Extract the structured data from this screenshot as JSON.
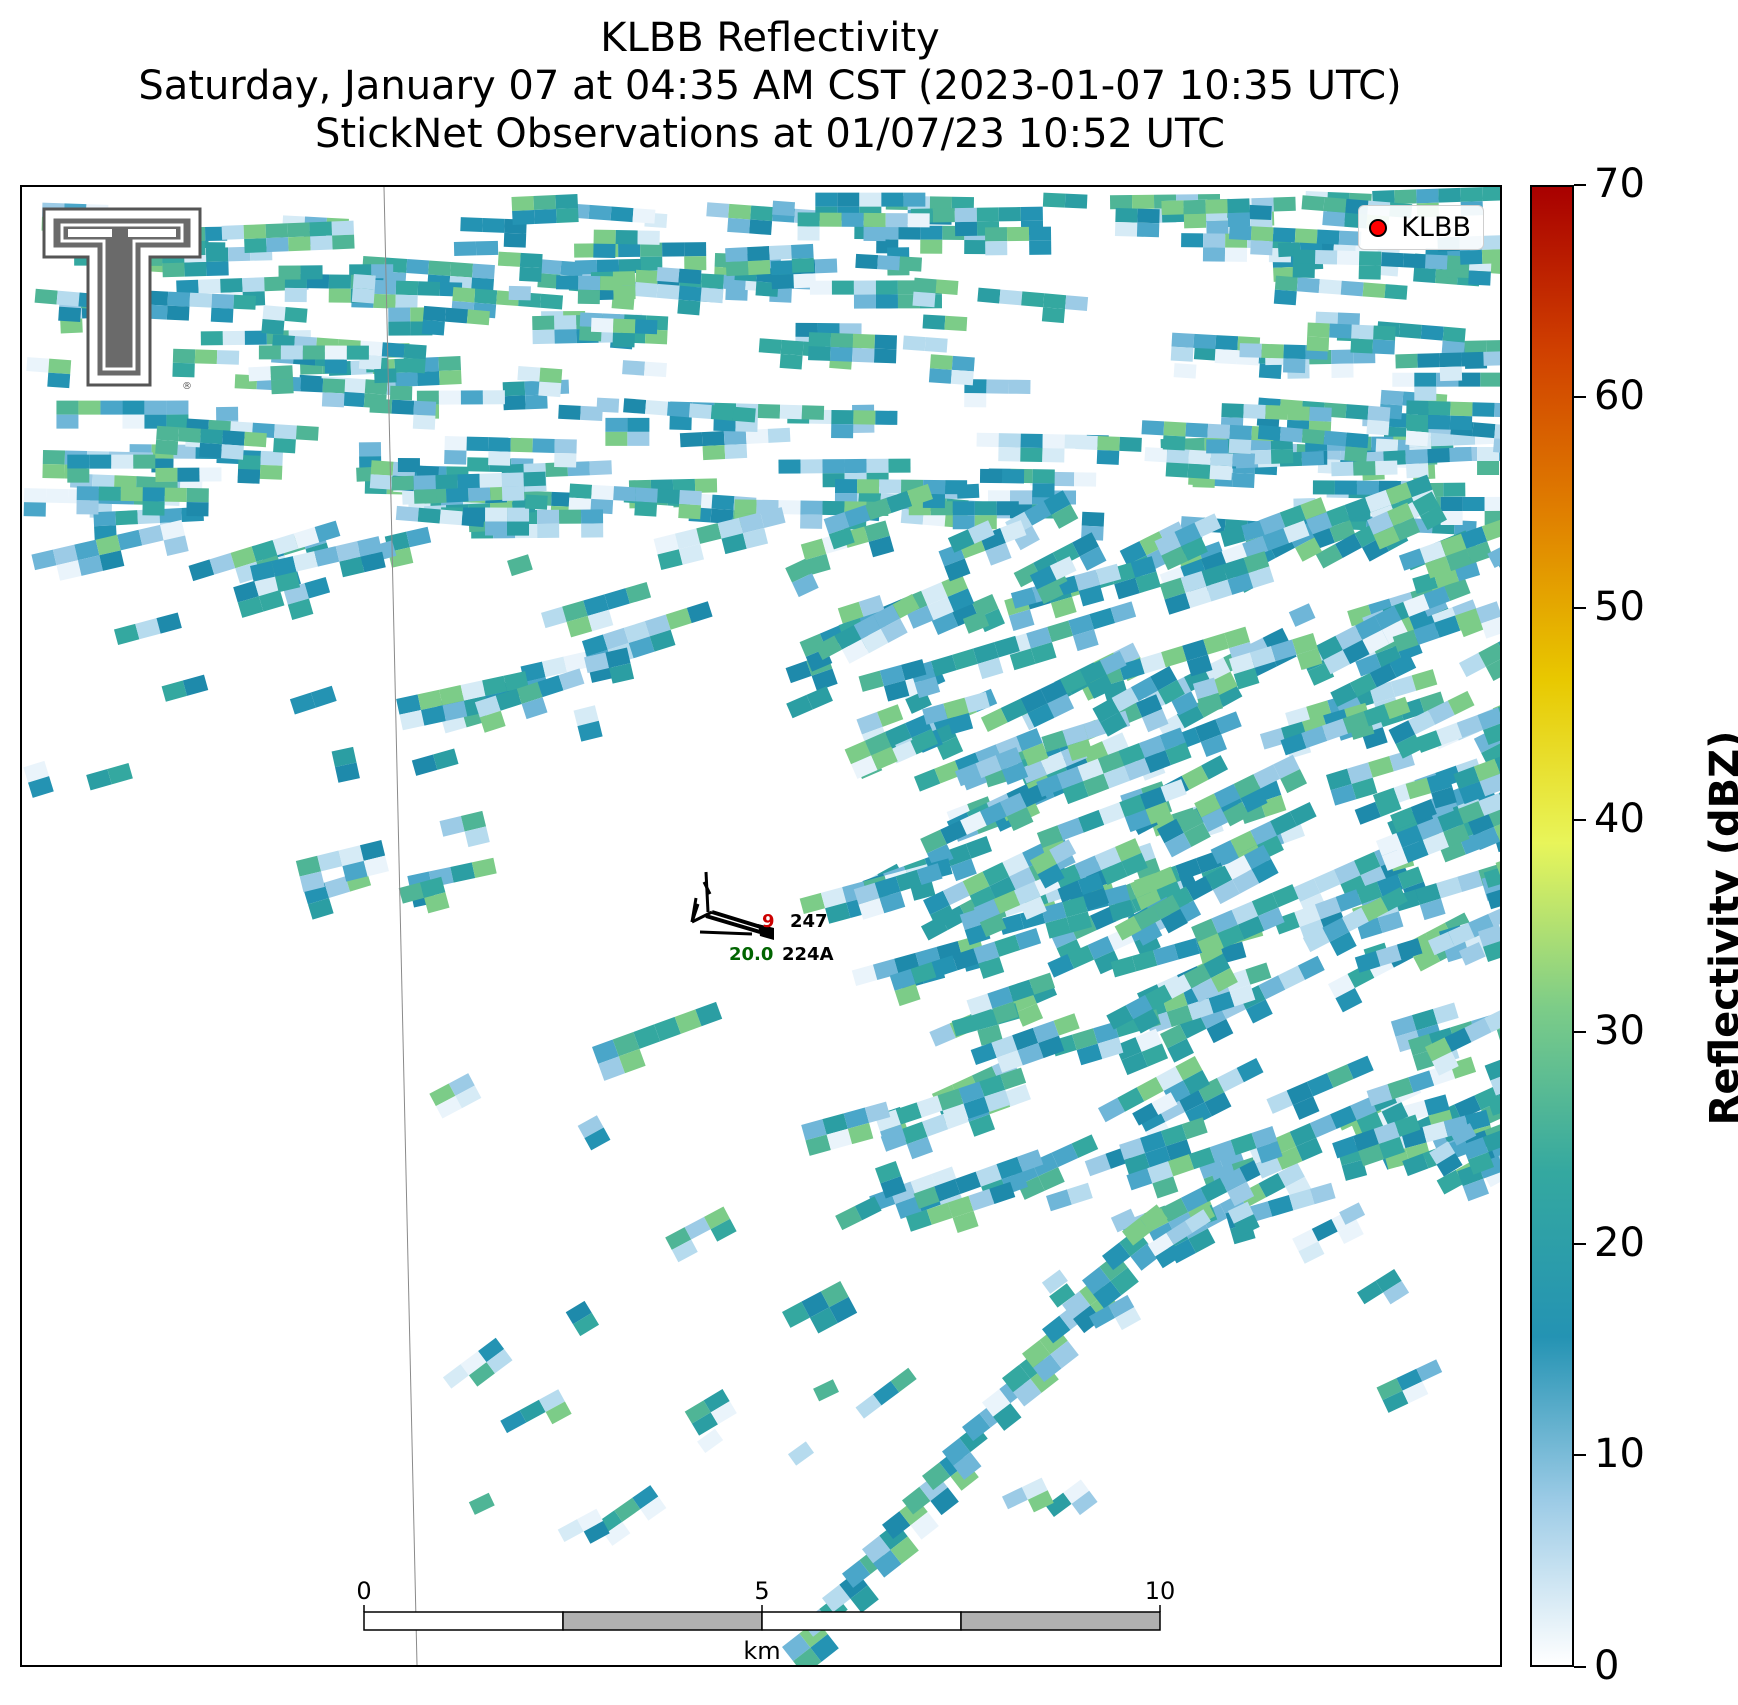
{
  "title": {
    "line1": "KLBB Reflectivity",
    "line2": "Saturday, January 07 at 04:35 AM CST (2023-01-07 10:35 UTC)",
    "line3": "StickNet Observations at 01/07/23 10:52 UTC"
  },
  "legend": {
    "label": "KLBB",
    "marker_color": "#ff0000"
  },
  "colorbar": {
    "label": "Reflectivity (dBZ)",
    "min": 0,
    "max": 70,
    "ticks": [
      "0",
      "10",
      "20",
      "30",
      "40",
      "50",
      "60",
      "70"
    ],
    "colors": [
      "#ffffff",
      "#9ccbe6",
      "#2493b3",
      "#34a8a0",
      "#7ccc88",
      "#e8f55a",
      "#e8c800",
      "#e08000",
      "#d04000",
      "#a80000"
    ]
  },
  "scale_bar": {
    "unit": "km",
    "labels": [
      "0",
      "5",
      "10"
    ]
  },
  "stations": [
    {
      "id": "247",
      "temp": "9",
      "temp_color": "#cc0000"
    },
    {
      "id": "224A",
      "temp": "20.0",
      "temp_color": "#006400"
    }
  ],
  "map": {
    "logo": "texas-tech-double-t-logo"
  }
}
